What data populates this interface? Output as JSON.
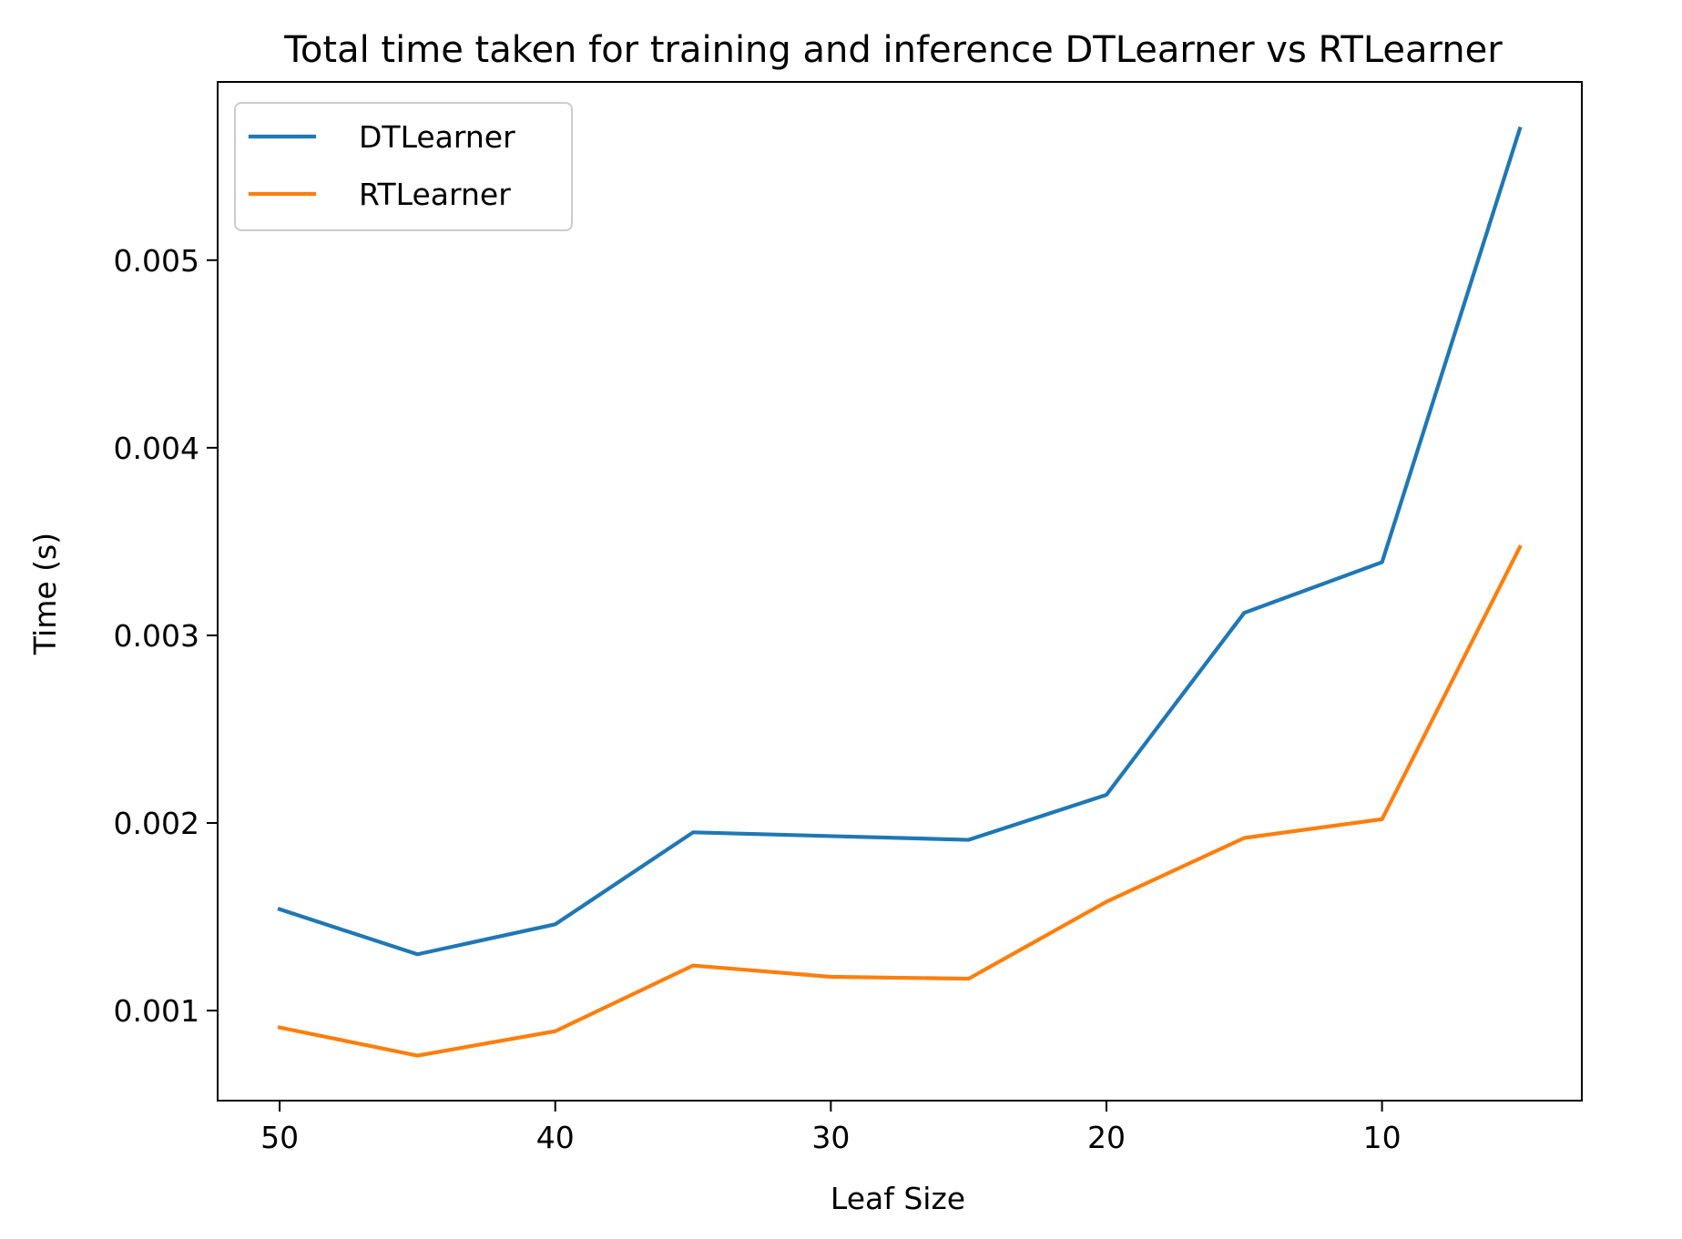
{
  "chart_data": {
    "type": "line",
    "title": "Total time taken for training and inference DTLearner vs RTLearner",
    "xlabel": "Leaf Size",
    "ylabel": "Time (s)",
    "x": [
      50,
      45,
      40,
      35,
      30,
      25,
      20,
      15,
      10,
      5
    ],
    "xlim": [
      52.25,
      2.75
    ],
    "ylim": [
      0.00052,
      0.00595
    ],
    "x_inverted": true,
    "xticks": [
      50,
      40,
      30,
      20,
      10
    ],
    "xtick_labels": [
      "50",
      "40",
      "30",
      "20",
      "10"
    ],
    "yticks": [
      0.001,
      0.002,
      0.003,
      0.004,
      0.005
    ],
    "ytick_labels": [
      "0.001",
      "0.002",
      "0.003",
      "0.004",
      "0.005"
    ],
    "grid": false,
    "legend_position": "top-left",
    "series": [
      {
        "name": "DTLearner",
        "color": "#1f77b4",
        "values": [
          0.00154,
          0.0013,
          0.00146,
          0.00195,
          0.00193,
          0.00191,
          0.00215,
          0.00312,
          0.00339,
          0.0057
        ]
      },
      {
        "name": "RTLearner",
        "color": "#ff7f0e",
        "values": [
          0.00091,
          0.00076,
          0.00089,
          0.00124,
          0.00118,
          0.00117,
          0.00158,
          0.00192,
          0.00202,
          0.00347
        ]
      }
    ]
  }
}
